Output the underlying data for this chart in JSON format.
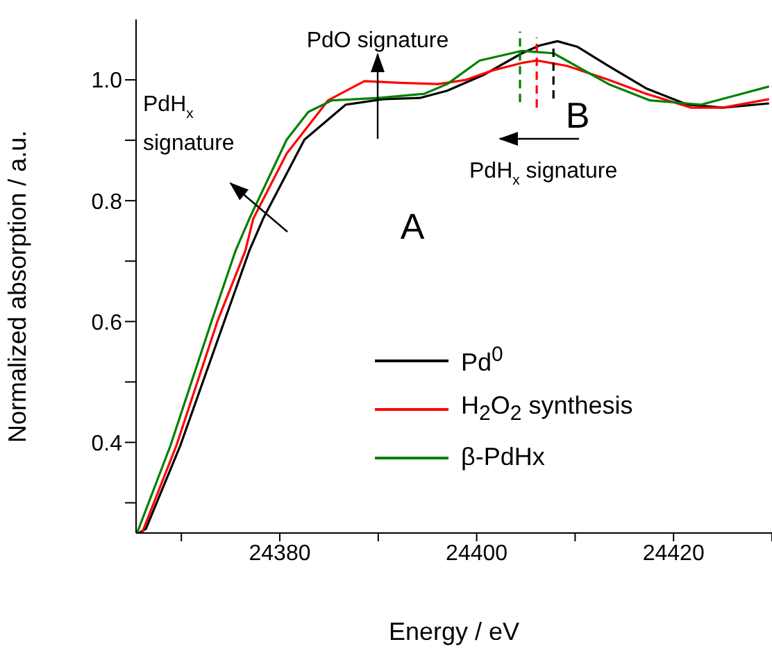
{
  "chart_data": {
    "type": "line",
    "xlabel": "Energy / eV",
    "ylabel": "Normalized absorption / a.u.",
    "xlim": [
      24365.4,
      24430
    ],
    "ylim": [
      0.25,
      1.1
    ],
    "xticks": [
      {
        "value": 24370,
        "label": null
      },
      24380,
      {
        "value": 24390,
        "label": null
      },
      24400,
      {
        "value": 24410,
        "label": null
      },
      24420,
      {
        "value": 24430,
        "label": null
      }
    ],
    "yticks": [
      {
        "value": 0.3,
        "label": null
      },
      0.4,
      {
        "value": 0.5,
        "label": null
      },
      0.6,
      {
        "value": 0.7,
        "label": null
      },
      0.8,
      {
        "value": 0.9,
        "label": null
      },
      {
        "value": 1.0,
        "label": "1.0"
      }
    ],
    "grid": false,
    "legend": "bottom right",
    "marker": "none",
    "line_style": "solid",
    "annotations": [
      "PdO signature",
      "A",
      "B",
      "PdH$_{x}$ signature",
      "PdH$_{x}$ signature"
    ],
    "series": [
      {
        "name": "Pd$^{0}$",
        "color": "#000000",
        "x": [
          24365.7,
          24366.4,
          24369.9,
          24374.4,
          24376.9,
          24378.3,
          24382.5,
          24386.7,
          24390.5,
          24394.2,
          24397.0,
          24400.8,
          24404.6,
          24406.4,
          24408.2,
          24410.2,
          24413.4,
          24417.2,
          24421.4,
          24425.0,
          24429.7
        ],
        "values": [
          0.25,
          0.257,
          0.395,
          0.602,
          0.717,
          0.77,
          0.901,
          0.959,
          0.968,
          0.97,
          0.982,
          1.009,
          1.044,
          1.057,
          1.064,
          1.055,
          1.023,
          0.986,
          0.959,
          0.954,
          0.961
        ]
      },
      {
        "name": "H$_{2}$O$_{2}$ synthesis",
        "color": "#ff0000",
        "x": [
          24366.0,
          24369.5,
          24373.7,
          24376.5,
          24377.3,
          24380.7,
          24384.9,
          24388.6,
          24392.3,
          24396.1,
          24398.9,
          24401.7,
          24404.6,
          24406.1,
          24409.2,
          24413.4,
          24417.2,
          24421.8,
          24425.0,
          24429.7
        ],
        "values": [
          0.25,
          0.395,
          0.602,
          0.717,
          0.77,
          0.878,
          0.966,
          0.998,
          0.995,
          0.993,
          1.0,
          1.016,
          1.028,
          1.032,
          1.023,
          1.0,
          0.977,
          0.954,
          0.954,
          0.968
        ]
      },
      {
        "name": "β-PdHx",
        "color": "#008000",
        "x": [
          24365.5,
          24368.9,
          24373.1,
          24375.5,
          24376.9,
          24380.7,
          24382.9,
          24385.3,
          24390.0,
          24394.7,
          24397.0,
          24400.3,
          24404.6,
          24407.8,
          24413.4,
          24417.6,
          24422.8,
          24426.5,
          24429.7
        ],
        "values": [
          0.25,
          0.395,
          0.602,
          0.717,
          0.77,
          0.901,
          0.947,
          0.966,
          0.97,
          0.977,
          0.993,
          1.032,
          1.048,
          1.044,
          0.993,
          0.966,
          0.959,
          0.975,
          0.989
        ]
      },
      {
        "color": "#008000",
        "line_style": "dashed",
        "x": [
          24404.4,
          24404.4
        ],
        "values": [
          0.963,
          1.08
        ]
      },
      {
        "color": "#ff0000",
        "line_style": "dashed",
        "x": [
          24406.1,
          24406.1
        ],
        "values": [
          0.954,
          1.07
        ]
      },
      {
        "color": "#000000",
        "line_style": "dashed",
        "x": [
          24407.8,
          24407.8
        ],
        "values": [
          0.969,
          1.064
        ]
      }
    ]
  }
}
